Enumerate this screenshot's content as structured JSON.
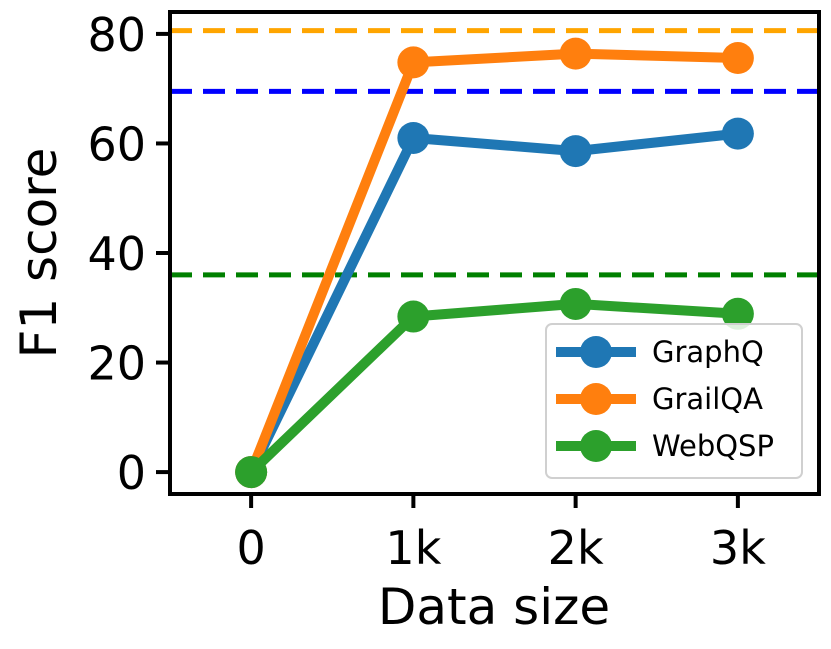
{
  "chart_data": {
    "type": "line",
    "categories": [
      "0",
      "1k",
      "2k",
      "3k"
    ],
    "x": [
      0,
      1000,
      2000,
      3000
    ],
    "xlabel": "Data size",
    "ylabel": "F1 score",
    "xlim": [
      -500,
      3500
    ],
    "ylim": [
      -4,
      84
    ],
    "yticks": [
      0,
      20,
      40,
      60,
      80
    ],
    "series": [
      {
        "name": "GraphQ",
        "color": "#1f77b4",
        "values": [
          0,
          61.0,
          58.6,
          61.8
        ]
      },
      {
        "name": "GrailQA",
        "color": "#ff7f0e",
        "values": [
          0,
          74.8,
          76.4,
          75.6
        ]
      },
      {
        "name": "WebQSP",
        "color": "#2ca02c",
        "values": [
          0,
          28.4,
          30.7,
          28.9
        ]
      }
    ],
    "reference_lines": [
      {
        "value": 80.6,
        "color": "#ffa500"
      },
      {
        "value": 69.5,
        "color": "#0000ff"
      },
      {
        "value": 36.0,
        "color": "#008000"
      }
    ],
    "grid": false,
    "legend_position": "lower-right"
  }
}
